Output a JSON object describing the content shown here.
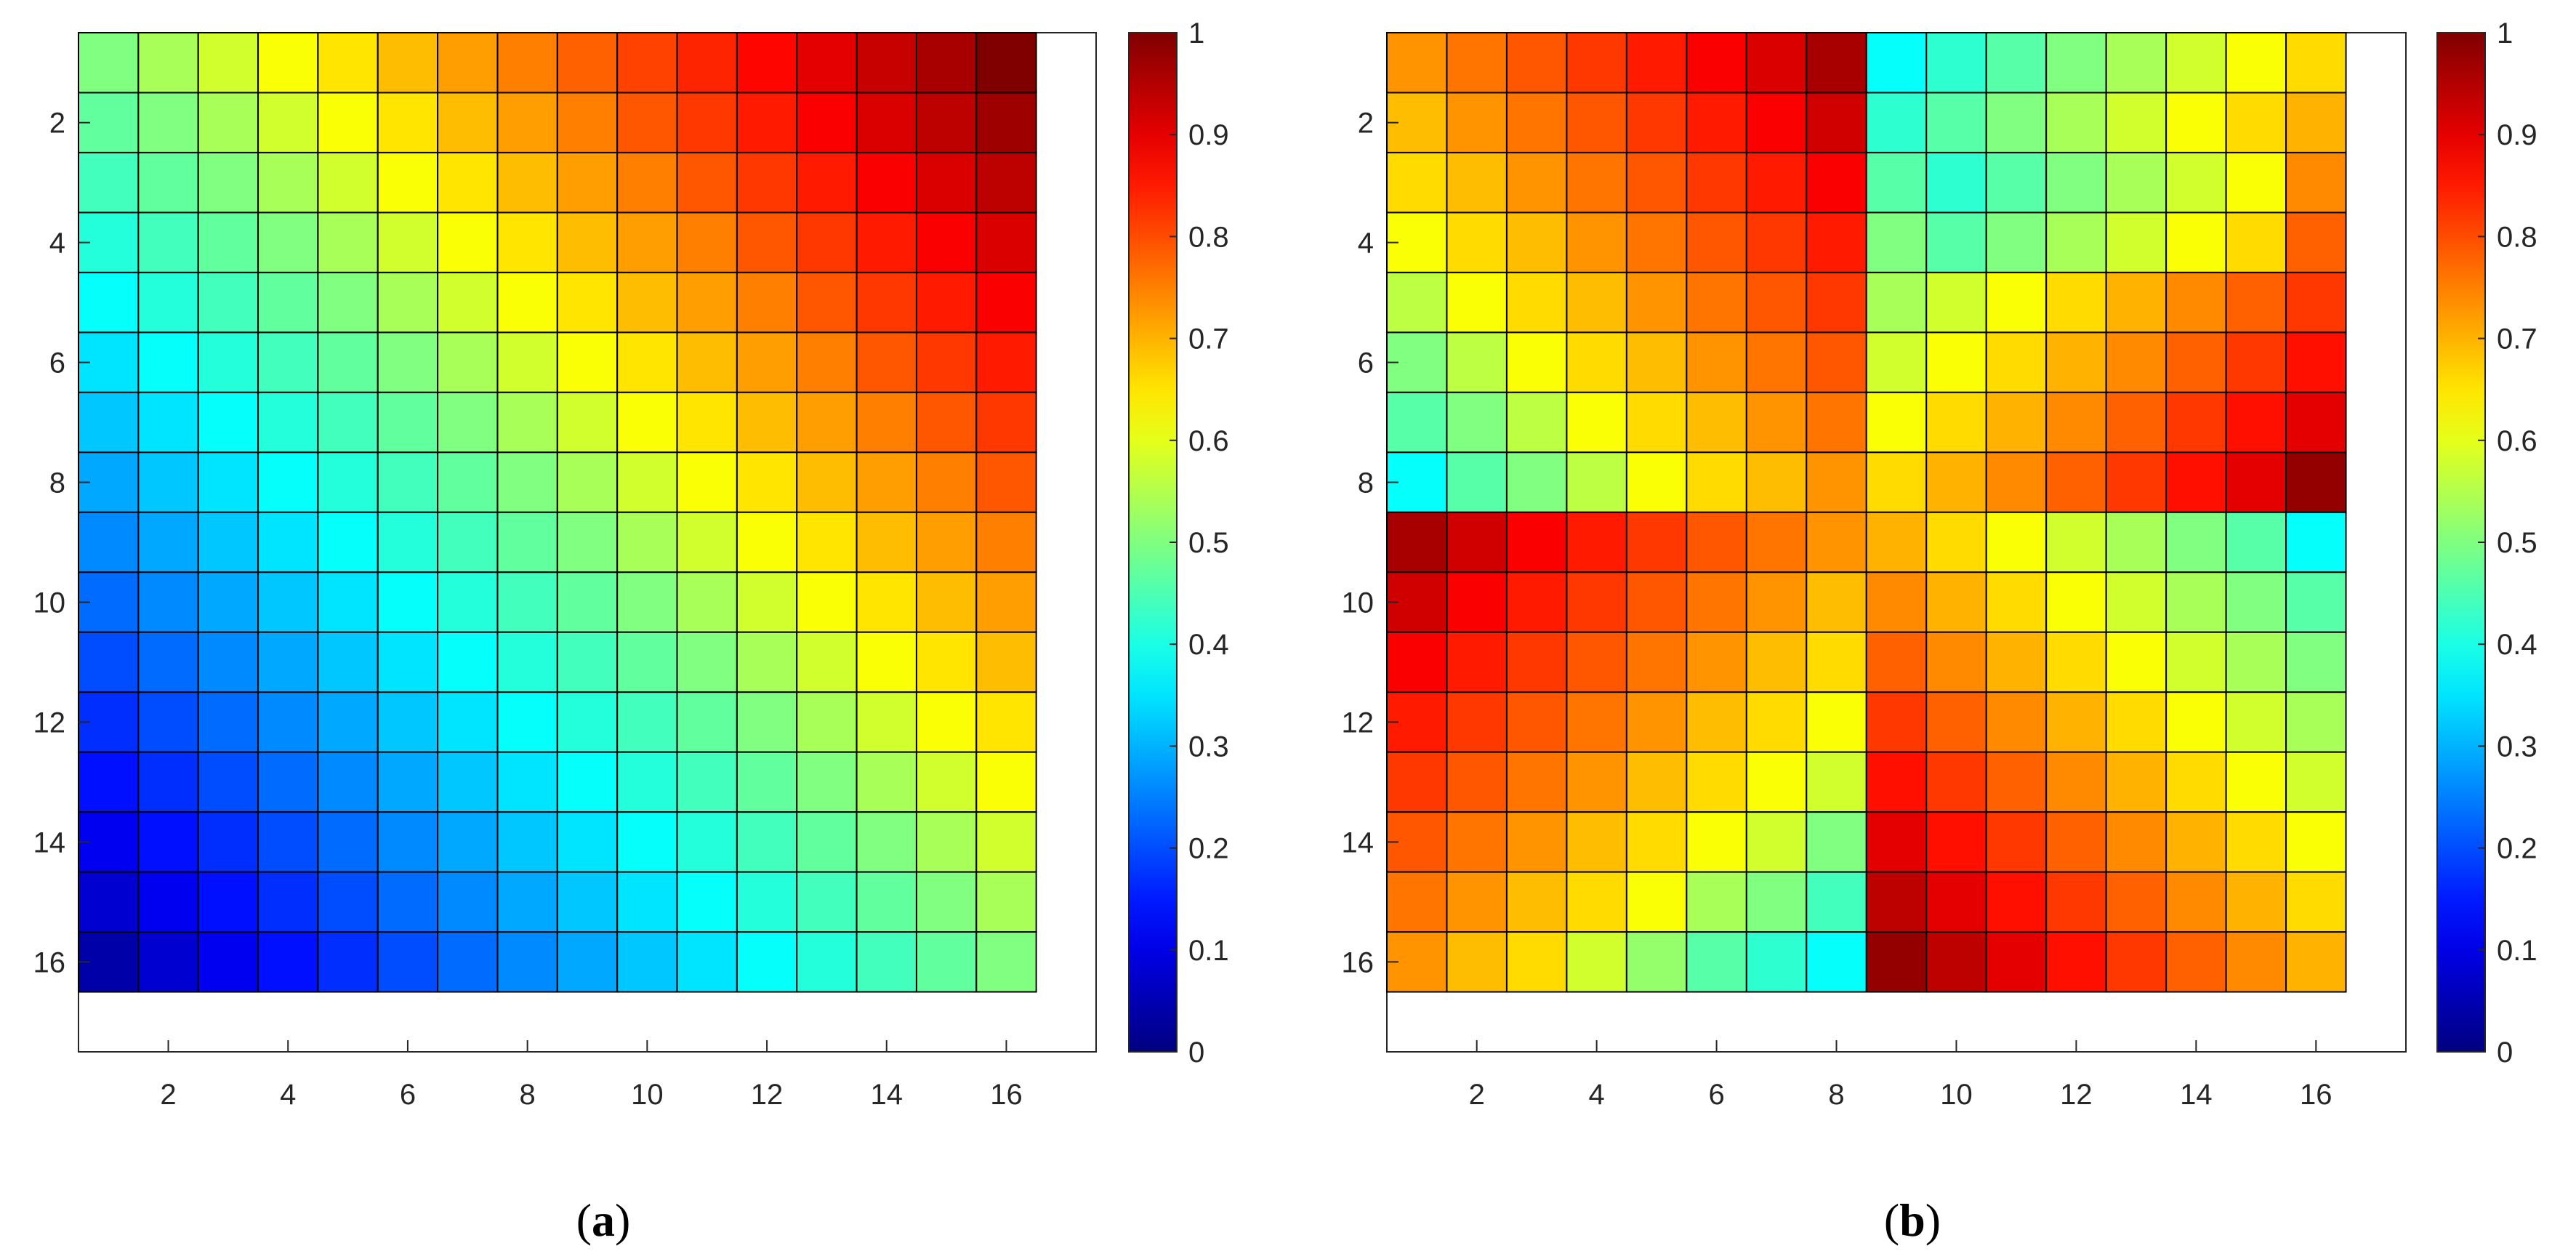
{
  "figure": {
    "panels": [
      {
        "paren_open": "(",
        "letter": "a",
        "paren_close": ")"
      },
      {
        "paren_open": "(",
        "letter": "b",
        "paren_close": ")"
      }
    ]
  },
  "chart_data": [
    {
      "type": "heatmap",
      "title": "",
      "xlabel": "",
      "ylabel": "",
      "rows": 16,
      "cols": 16,
      "xlim": [
        0.5,
        17.5
      ],
      "ylim": [
        0.5,
        17.5
      ],
      "y_reversed": true,
      "xticks": [
        2,
        4,
        6,
        8,
        10,
        12,
        14,
        16
      ],
      "yticks": [
        2,
        4,
        6,
        8,
        10,
        12,
        14,
        16
      ],
      "colorbar": {
        "min": 0,
        "max": 1,
        "ticks": [
          "0",
          "0.1",
          "0.2",
          "0.3",
          "0.4",
          "0.5",
          "0.6",
          "0.7",
          "0.8",
          "0.9",
          "1"
        ],
        "colormap": "jet"
      },
      "grid": true,
      "values": [
        [
          0.5,
          0.54,
          0.58,
          0.62,
          0.65,
          0.69,
          0.72,
          0.75,
          0.78,
          0.81,
          0.84,
          0.87,
          0.9,
          0.93,
          0.96,
          1.0
        ],
        [
          0.47,
          0.5,
          0.54,
          0.58,
          0.62,
          0.65,
          0.69,
          0.72,
          0.75,
          0.79,
          0.82,
          0.85,
          0.88,
          0.91,
          0.94,
          0.97
        ],
        [
          0.44,
          0.47,
          0.5,
          0.54,
          0.58,
          0.62,
          0.65,
          0.69,
          0.72,
          0.75,
          0.79,
          0.82,
          0.85,
          0.88,
          0.91,
          0.94
        ],
        [
          0.41,
          0.44,
          0.47,
          0.5,
          0.54,
          0.58,
          0.62,
          0.65,
          0.69,
          0.72,
          0.75,
          0.79,
          0.82,
          0.85,
          0.88,
          0.91
        ],
        [
          0.38,
          0.41,
          0.44,
          0.47,
          0.5,
          0.54,
          0.58,
          0.62,
          0.65,
          0.69,
          0.72,
          0.75,
          0.79,
          0.82,
          0.85,
          0.88
        ],
        [
          0.35,
          0.38,
          0.41,
          0.44,
          0.47,
          0.5,
          0.54,
          0.58,
          0.62,
          0.65,
          0.69,
          0.72,
          0.75,
          0.79,
          0.82,
          0.85
        ],
        [
          0.32,
          0.35,
          0.38,
          0.41,
          0.44,
          0.47,
          0.5,
          0.54,
          0.58,
          0.62,
          0.65,
          0.69,
          0.72,
          0.75,
          0.79,
          0.82
        ],
        [
          0.29,
          0.32,
          0.35,
          0.38,
          0.41,
          0.44,
          0.47,
          0.5,
          0.54,
          0.58,
          0.62,
          0.65,
          0.69,
          0.72,
          0.75,
          0.79
        ],
        [
          0.26,
          0.29,
          0.32,
          0.35,
          0.38,
          0.41,
          0.44,
          0.47,
          0.5,
          0.54,
          0.58,
          0.62,
          0.65,
          0.69,
          0.72,
          0.75
        ],
        [
          0.23,
          0.26,
          0.29,
          0.32,
          0.35,
          0.38,
          0.41,
          0.44,
          0.47,
          0.5,
          0.54,
          0.58,
          0.62,
          0.65,
          0.69,
          0.72
        ],
        [
          0.2,
          0.23,
          0.26,
          0.29,
          0.32,
          0.35,
          0.38,
          0.41,
          0.44,
          0.47,
          0.5,
          0.54,
          0.58,
          0.62,
          0.65,
          0.69
        ],
        [
          0.17,
          0.2,
          0.23,
          0.26,
          0.29,
          0.32,
          0.35,
          0.38,
          0.41,
          0.44,
          0.47,
          0.5,
          0.54,
          0.58,
          0.62,
          0.65
        ],
        [
          0.14,
          0.17,
          0.2,
          0.23,
          0.26,
          0.29,
          0.32,
          0.35,
          0.38,
          0.41,
          0.44,
          0.47,
          0.5,
          0.54,
          0.58,
          0.62
        ],
        [
          0.11,
          0.14,
          0.17,
          0.2,
          0.23,
          0.26,
          0.29,
          0.32,
          0.35,
          0.38,
          0.41,
          0.44,
          0.47,
          0.5,
          0.54,
          0.58
        ],
        [
          0.08,
          0.11,
          0.14,
          0.17,
          0.2,
          0.23,
          0.26,
          0.29,
          0.32,
          0.35,
          0.38,
          0.41,
          0.44,
          0.47,
          0.5,
          0.54
        ],
        [
          0.04,
          0.08,
          0.11,
          0.14,
          0.17,
          0.2,
          0.23,
          0.26,
          0.29,
          0.32,
          0.35,
          0.38,
          0.41,
          0.44,
          0.47,
          0.5
        ]
      ]
    },
    {
      "type": "heatmap",
      "title": "",
      "xlabel": "",
      "ylabel": "",
      "rows": 16,
      "cols": 16,
      "xlim": [
        0.5,
        17.5
      ],
      "ylim": [
        0.5,
        17.5
      ],
      "y_reversed": true,
      "xticks": [
        2,
        4,
        6,
        8,
        10,
        12,
        14,
        16
      ],
      "yticks": [
        2,
        4,
        6,
        8,
        10,
        12,
        14,
        16
      ],
      "colorbar": {
        "min": 0,
        "max": 1,
        "ticks": [
          "0",
          "0.1",
          "0.2",
          "0.3",
          "0.4",
          "0.5",
          "0.6",
          "0.7",
          "0.8",
          "0.9",
          "1"
        ],
        "colormap": "jet"
      },
      "grid": true,
      "values": [
        [
          0.73,
          0.76,
          0.79,
          0.82,
          0.85,
          0.88,
          0.91,
          0.96,
          0.38,
          0.42,
          0.46,
          0.5,
          0.54,
          0.58,
          0.62,
          0.66
        ],
        [
          0.69,
          0.73,
          0.76,
          0.79,
          0.82,
          0.85,
          0.88,
          0.92,
          0.42,
          0.46,
          0.5,
          0.54,
          0.58,
          0.62,
          0.66,
          0.7
        ],
        [
          0.66,
          0.69,
          0.73,
          0.76,
          0.79,
          0.82,
          0.85,
          0.88,
          0.46,
          0.42,
          0.46,
          0.5,
          0.54,
          0.58,
          0.62,
          0.74
        ],
        [
          0.62,
          0.66,
          0.69,
          0.73,
          0.76,
          0.79,
          0.82,
          0.85,
          0.5,
          0.46,
          0.5,
          0.54,
          0.58,
          0.62,
          0.66,
          0.78
        ],
        [
          0.56,
          0.62,
          0.66,
          0.69,
          0.73,
          0.76,
          0.79,
          0.82,
          0.54,
          0.58,
          0.62,
          0.66,
          0.7,
          0.74,
          0.78,
          0.82
        ],
        [
          0.5,
          0.56,
          0.62,
          0.66,
          0.69,
          0.73,
          0.76,
          0.79,
          0.58,
          0.62,
          0.66,
          0.7,
          0.74,
          0.78,
          0.82,
          0.86
        ],
        [
          0.46,
          0.5,
          0.56,
          0.62,
          0.66,
          0.69,
          0.73,
          0.76,
          0.62,
          0.66,
          0.7,
          0.74,
          0.78,
          0.82,
          0.86,
          0.9
        ],
        [
          0.38,
          0.46,
          0.5,
          0.56,
          0.62,
          0.66,
          0.69,
          0.73,
          0.66,
          0.7,
          0.74,
          0.78,
          0.82,
          0.86,
          0.9,
          0.98
        ],
        [
          0.96,
          0.92,
          0.88,
          0.85,
          0.82,
          0.79,
          0.76,
          0.73,
          0.7,
          0.66,
          0.62,
          0.58,
          0.54,
          0.5,
          0.46,
          0.38
        ],
        [
          0.92,
          0.88,
          0.85,
          0.82,
          0.79,
          0.76,
          0.73,
          0.69,
          0.74,
          0.7,
          0.66,
          0.62,
          0.58,
          0.54,
          0.5,
          0.46
        ],
        [
          0.88,
          0.85,
          0.82,
          0.79,
          0.76,
          0.73,
          0.69,
          0.66,
          0.78,
          0.74,
          0.7,
          0.66,
          0.62,
          0.58,
          0.54,
          0.5
        ],
        [
          0.85,
          0.82,
          0.79,
          0.76,
          0.73,
          0.69,
          0.66,
          0.62,
          0.82,
          0.78,
          0.74,
          0.7,
          0.66,
          0.62,
          0.58,
          0.54
        ],
        [
          0.82,
          0.79,
          0.76,
          0.73,
          0.69,
          0.66,
          0.62,
          0.58,
          0.86,
          0.82,
          0.78,
          0.74,
          0.7,
          0.66,
          0.62,
          0.58
        ],
        [
          0.79,
          0.76,
          0.73,
          0.69,
          0.66,
          0.62,
          0.58,
          0.5,
          0.9,
          0.86,
          0.82,
          0.78,
          0.74,
          0.7,
          0.66,
          0.62
        ],
        [
          0.76,
          0.73,
          0.69,
          0.66,
          0.62,
          0.54,
          0.5,
          0.44,
          0.94,
          0.9,
          0.86,
          0.82,
          0.78,
          0.74,
          0.7,
          0.66
        ],
        [
          0.73,
          0.69,
          0.66,
          0.58,
          0.52,
          0.46,
          0.42,
          0.38,
          0.98,
          0.94,
          0.9,
          0.86,
          0.82,
          0.78,
          0.74,
          0.7
        ]
      ]
    }
  ]
}
